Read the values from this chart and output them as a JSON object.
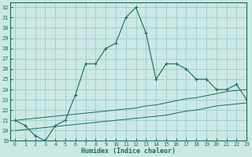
{
  "xlabel": "Humidex (Indice chaleur)",
  "background_color": "#cce8e4",
  "grid_color": "#99cccc",
  "line_color": "#1a6b5a",
  "x": [
    0,
    1,
    2,
    3,
    4,
    5,
    6,
    7,
    8,
    9,
    10,
    11,
    12,
    13,
    14,
    15,
    16,
    17,
    18,
    19,
    20,
    21,
    22,
    23
  ],
  "y_main": [
    21,
    20.5,
    19.5,
    19,
    20.5,
    21,
    23.5,
    26.5,
    26.5,
    28,
    28.5,
    31,
    32,
    29.5,
    25,
    26.5,
    26.5,
    26,
    25,
    25,
    24,
    24,
    24.5,
    23
  ],
  "y_line1": [
    21.0,
    21.1,
    21.2,
    21.3,
    21.4,
    21.5,
    21.6,
    21.7,
    21.8,
    21.9,
    22.0,
    22.1,
    22.2,
    22.4,
    22.5,
    22.7,
    22.9,
    23.1,
    23.2,
    23.4,
    23.6,
    23.8,
    23.9,
    24.0
  ],
  "y_line2": [
    20.0,
    20.1,
    20.2,
    20.3,
    20.4,
    20.5,
    20.6,
    20.7,
    20.8,
    20.9,
    21.0,
    21.1,
    21.2,
    21.3,
    21.4,
    21.5,
    21.7,
    21.9,
    22.0,
    22.2,
    22.4,
    22.5,
    22.6,
    22.7
  ],
  "ylim": [
    19,
    32.5
  ],
  "xlim": [
    -0.5,
    23
  ],
  "yticks": [
    19,
    20,
    21,
    22,
    23,
    24,
    25,
    26,
    27,
    28,
    29,
    30,
    31,
    32
  ],
  "xticks": [
    0,
    1,
    2,
    3,
    4,
    5,
    6,
    7,
    8,
    9,
    10,
    11,
    12,
    13,
    14,
    15,
    16,
    17,
    18,
    19,
    20,
    21,
    22,
    23
  ]
}
